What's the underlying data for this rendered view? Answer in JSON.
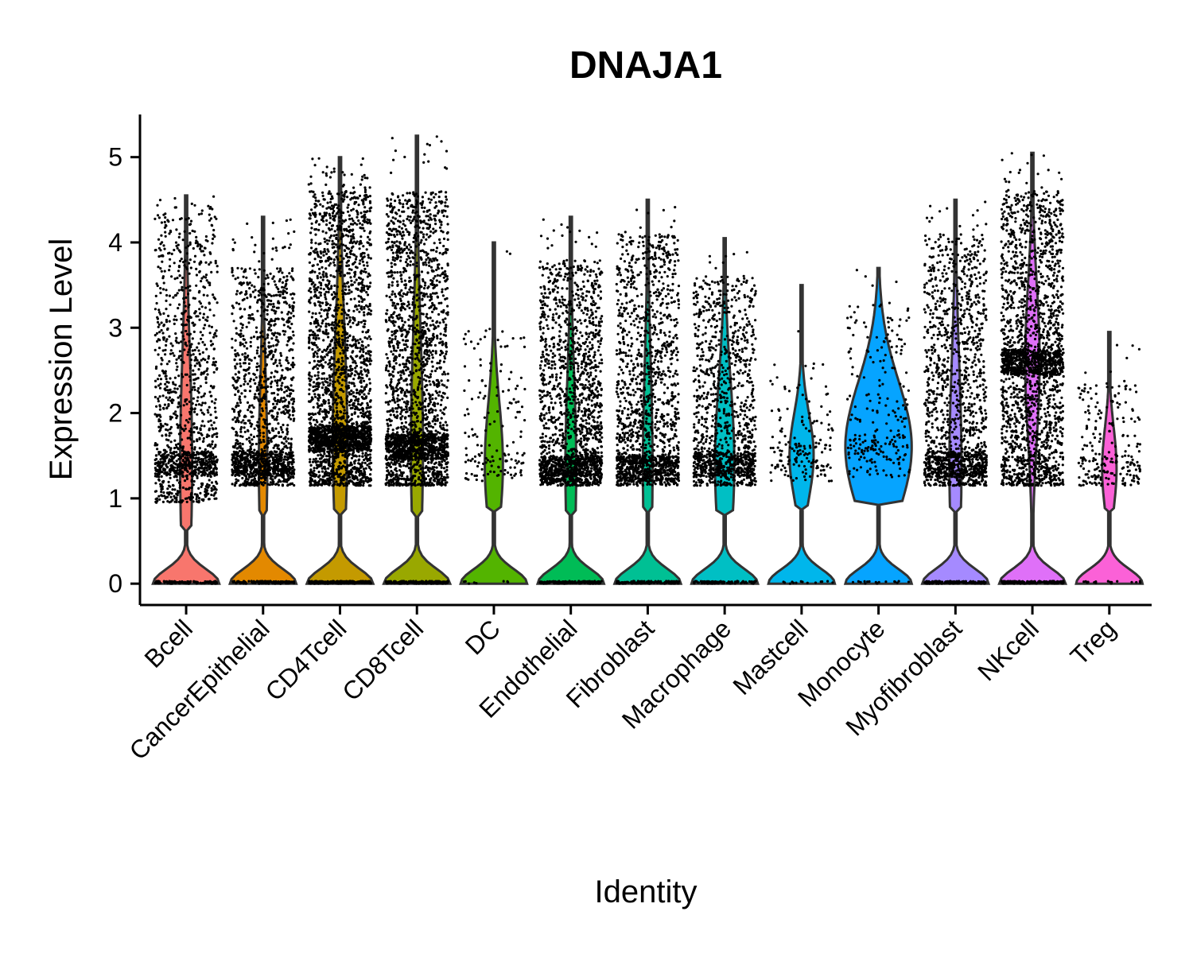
{
  "chart_data": {
    "type": "violin",
    "title": "DNAJA1",
    "xlabel": "Identity",
    "ylabel": "Expression Level",
    "ylim": [
      -0.25,
      5.5
    ],
    "yticks": [
      0,
      1,
      2,
      3,
      4,
      5
    ],
    "grid": false,
    "legend": "none",
    "categories": [
      {
        "name": "Bcell",
        "color": "#F8766D",
        "max": 4.55,
        "top": 4.3,
        "low": 0.95,
        "upper_mode": 1.4,
        "zero_w": 0.55,
        "waist": 0.65,
        "upper_w": 0.1
      },
      {
        "name": "CancerEpithelial",
        "color": "#E38900",
        "max": 4.3,
        "top": 3.7,
        "low": 1.15,
        "upper_mode": 1.4,
        "zero_w": 0.55,
        "waist": 0.7,
        "upper_w": 0.07
      },
      {
        "name": "CD4Tcell",
        "color": "#C49A00",
        "max": 5.0,
        "top": 4.6,
        "low": 1.15,
        "upper_mode": 1.7,
        "zero_w": 0.55,
        "waist": 0.7,
        "upper_w": 0.12
      },
      {
        "name": "CD8Tcell",
        "color": "#99A800",
        "max": 5.25,
        "top": 4.6,
        "low": 1.15,
        "upper_mode": 1.6,
        "zero_w": 0.55,
        "waist": 0.75,
        "upper_w": 0.1
      },
      {
        "name": "DC",
        "color": "#53B400",
        "max": 4.0,
        "top": 3.0,
        "low": 1.2,
        "upper_mode": 1.4,
        "zero_w": 0.55,
        "waist": 0.75,
        "upper_w": 0.15
      },
      {
        "name": "Endothelial",
        "color": "#00BC56",
        "max": 4.3,
        "top": 3.8,
        "low": 1.15,
        "upper_mode": 1.35,
        "zero_w": 0.55,
        "waist": 0.7,
        "upper_w": 0.09
      },
      {
        "name": "Fibroblast",
        "color": "#00C094",
        "max": 4.5,
        "top": 4.1,
        "low": 1.15,
        "upper_mode": 1.35,
        "zero_w": 0.55,
        "waist": 0.7,
        "upper_w": 0.08
      },
      {
        "name": "Macrophage",
        "color": "#00BFC4",
        "max": 4.05,
        "top": 3.6,
        "low": 1.15,
        "upper_mode": 1.4,
        "zero_w": 0.55,
        "waist": 0.7,
        "upper_w": 0.16
      },
      {
        "name": "Mastcell",
        "color": "#00B6EB",
        "max": 3.5,
        "top": 2.6,
        "low": 1.2,
        "upper_mode": 1.5,
        "zero_w": 0.55,
        "waist": 0.85,
        "upper_w": 0.2
      },
      {
        "name": "Monocyte",
        "color": "#06A4FF",
        "max": 3.7,
        "top": 3.3,
        "low": 1.25,
        "upper_mode": 1.6,
        "zero_w": 0.55,
        "waist": 0.95,
        "upper_w": 0.55
      },
      {
        "name": "Myofibroblast",
        "color": "#A58AFF",
        "max": 4.5,
        "top": 4.1,
        "low": 1.15,
        "upper_mode": 1.4,
        "zero_w": 0.55,
        "waist": 0.7,
        "upper_w": 0.1
      },
      {
        "name": "NKcell",
        "color": "#DF70F8",
        "max": 5.05,
        "top": 4.6,
        "low": 1.15,
        "upper_mode": 2.6,
        "zero_w": 0.55,
        "waist": 0.65,
        "upper_w": 0.12
      },
      {
        "name": "Treg",
        "color": "#FB61D7",
        "max": 2.95,
        "top": 2.4,
        "low": 1.15,
        "upper_mode": 1.35,
        "zero_w": 0.55,
        "waist": 0.8,
        "upper_w": 0.12
      }
    ],
    "dot_counts": [
      1400,
      1600,
      3000,
      2600,
      160,
      1900,
      1700,
      1300,
      180,
      260,
      1600,
      2400,
      240
    ]
  }
}
